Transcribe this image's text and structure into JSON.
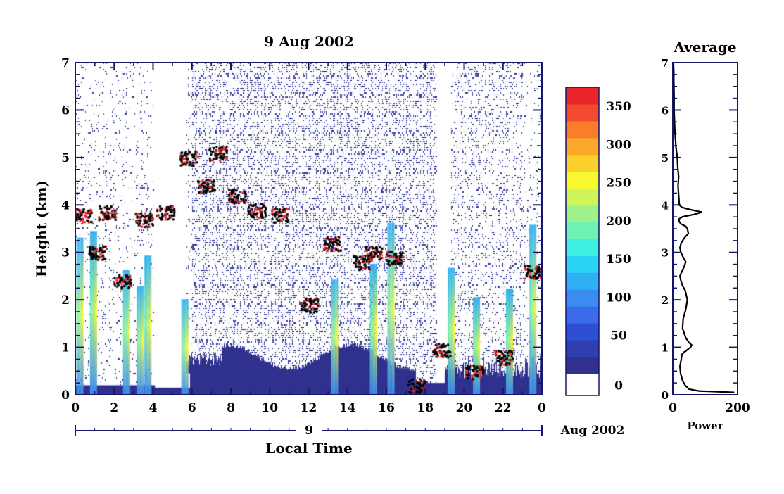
{
  "chart_data": [
    {
      "type": "heatmap",
      "title": "9 Aug 2002",
      "xlabel": "Local Time",
      "ylabel": "Height (km)",
      "xlim": [
        0,
        24
      ],
      "ylim": [
        0,
        7
      ],
      "x_tick_labels": [
        "0",
        "2",
        "4",
        "6",
        "8",
        "10",
        "12",
        "14",
        "16",
        "18",
        "20",
        "22",
        "0"
      ],
      "y_tick_labels": [
        "0",
        "1",
        "2",
        "3",
        "4",
        "5",
        "6",
        "7"
      ],
      "date_axis": {
        "day_label": "9",
        "month_label": "Aug 2002"
      },
      "colorbar": {
        "tick_labels": [
          "0",
          "50",
          "100",
          "150",
          "200",
          "250",
          "300",
          "350"
        ],
        "range": [
          0,
          375
        ],
        "colors": [
          "#ffffff",
          "#30308f",
          "#2f3fb0",
          "#2f4fd2",
          "#3a6bea",
          "#3a8cf0",
          "#2fb0f2",
          "#2bd3f2",
          "#3df0e0",
          "#6ff0b4",
          "#9ff28a",
          "#cff55a",
          "#f8f82e",
          "#fcd02a",
          "#fca828",
          "#fa7d29",
          "#f44a2f",
          "#e8262a"
        ]
      },
      "features": {
        "cloud_layers": [
          {
            "t": 0.35,
            "h": 3.8
          },
          {
            "t": 1.1,
            "h": 3.0
          },
          {
            "t": 1.6,
            "h": 3.85
          },
          {
            "t": 2.4,
            "h": 2.4
          },
          {
            "t": 3.5,
            "h": 3.7
          },
          {
            "t": 4.6,
            "h": 3.85
          },
          {
            "t": 5.8,
            "h": 5.0
          },
          {
            "t": 6.7,
            "h": 4.4
          },
          {
            "t": 7.3,
            "h": 5.1
          },
          {
            "t": 8.3,
            "h": 4.2
          },
          {
            "t": 9.3,
            "h": 3.9
          },
          {
            "t": 10.5,
            "h": 3.8
          },
          {
            "t": 12.0,
            "h": 1.9
          },
          {
            "t": 13.2,
            "h": 3.2
          },
          {
            "t": 14.7,
            "h": 2.8
          },
          {
            "t": 15.3,
            "h": 3.0
          },
          {
            "t": 16.4,
            "h": 2.9
          },
          {
            "t": 17.5,
            "h": 0.2
          },
          {
            "t": 18.8,
            "h": 0.95
          },
          {
            "t": 20.5,
            "h": 0.5
          },
          {
            "t": 22.0,
            "h": 0.8
          },
          {
            "t": 23.5,
            "h": 2.6
          }
        ],
        "rain_streaks": [
          0.2,
          0.9,
          2.6,
          3.3,
          3.7,
          5.6,
          13.3,
          15.3,
          16.2,
          19.3,
          20.6,
          22.3,
          23.5
        ],
        "no_data_periods": [
          [
            4.0,
            5.7
          ],
          [
            18.6,
            19.3
          ]
        ]
      }
    },
    {
      "type": "line",
      "title": "Average",
      "xlabel": "Power",
      "ylabel": "",
      "xlim": [
        0,
        200
      ],
      "ylim": [
        0,
        7
      ],
      "x_tick_labels": [
        "0",
        "200"
      ],
      "y_tick_labels": [
        "0",
        "1",
        "2",
        "3",
        "4",
        "5",
        "6",
        "7"
      ],
      "series": [
        {
          "x": [
            190,
            80,
            50,
            38,
            30,
            24,
            22,
            26,
            28,
            35,
            40,
            45,
            55,
            58,
            50,
            40,
            30,
            32,
            40,
            45,
            38,
            30,
            25,
            22,
            28,
            35,
            40,
            32,
            25,
            22,
            26,
            35,
            48,
            45,
            40,
            25,
            20,
            18,
            30,
            65,
            90,
            55,
            28,
            20,
            18,
            16,
            18,
            15,
            14,
            12,
            10,
            8,
            6,
            5,
            4,
            4,
            3,
            3,
            2
          ],
          "y": [
            0.05,
            0.08,
            0.12,
            0.2,
            0.3,
            0.45,
            0.6,
            0.75,
            0.85,
            0.9,
            0.92,
            0.95,
            1.0,
            1.05,
            1.1,
            1.2,
            1.4,
            1.6,
            1.8,
            2.0,
            2.2,
            2.3,
            2.4,
            2.5,
            2.6,
            2.7,
            2.8,
            2.9,
            3.0,
            3.1,
            3.2,
            3.3,
            3.4,
            3.5,
            3.55,
            3.6,
            3.65,
            3.7,
            3.75,
            3.8,
            3.85,
            3.9,
            3.95,
            4.0,
            4.2,
            4.4,
            4.6,
            4.8,
            5.0,
            5.1,
            5.2,
            5.4,
            5.6,
            5.8,
            6.0,
            6.3,
            6.6,
            6.8,
            7.0
          ]
        }
      ]
    }
  ]
}
